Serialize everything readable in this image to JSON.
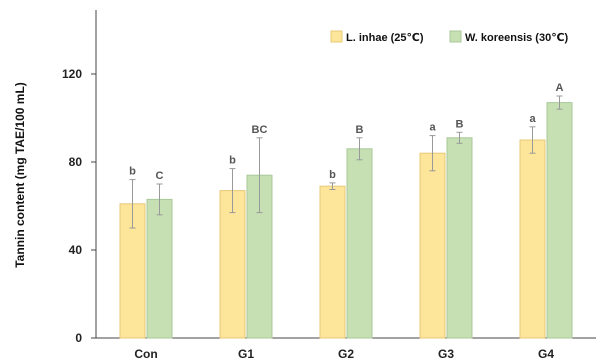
{
  "chart_data": {
    "type": "bar",
    "title": "",
    "xlabel": "",
    "ylabel": "Tannin content (mg TAE/100 mL)",
    "ylim": [
      0,
      150
    ],
    "yticks": [
      0,
      40,
      80,
      120
    ],
    "categories": [
      "Con",
      "G1",
      "G2",
      "G3",
      "G4"
    ],
    "legend_position": "top-right",
    "grid": false,
    "series": [
      {
        "name": "L. inhae (25℃)",
        "color": "#fde59a",
        "edge": "#e8c978",
        "values": [
          61,
          67,
          69,
          84,
          90
        ],
        "errors": [
          11,
          10,
          1.5,
          8,
          6
        ],
        "labels": [
          "b",
          "b",
          "b",
          "a",
          "a"
        ]
      },
      {
        "name": "W. koreensis (30℃)",
        "color": "#c6e0b4",
        "edge": "#a9c99a",
        "values": [
          63,
          74,
          86,
          91,
          107
        ],
        "errors": [
          7,
          17,
          5,
          2.5,
          3
        ],
        "labels": [
          "C",
          "BC",
          "B",
          "B",
          "A"
        ]
      }
    ]
  }
}
